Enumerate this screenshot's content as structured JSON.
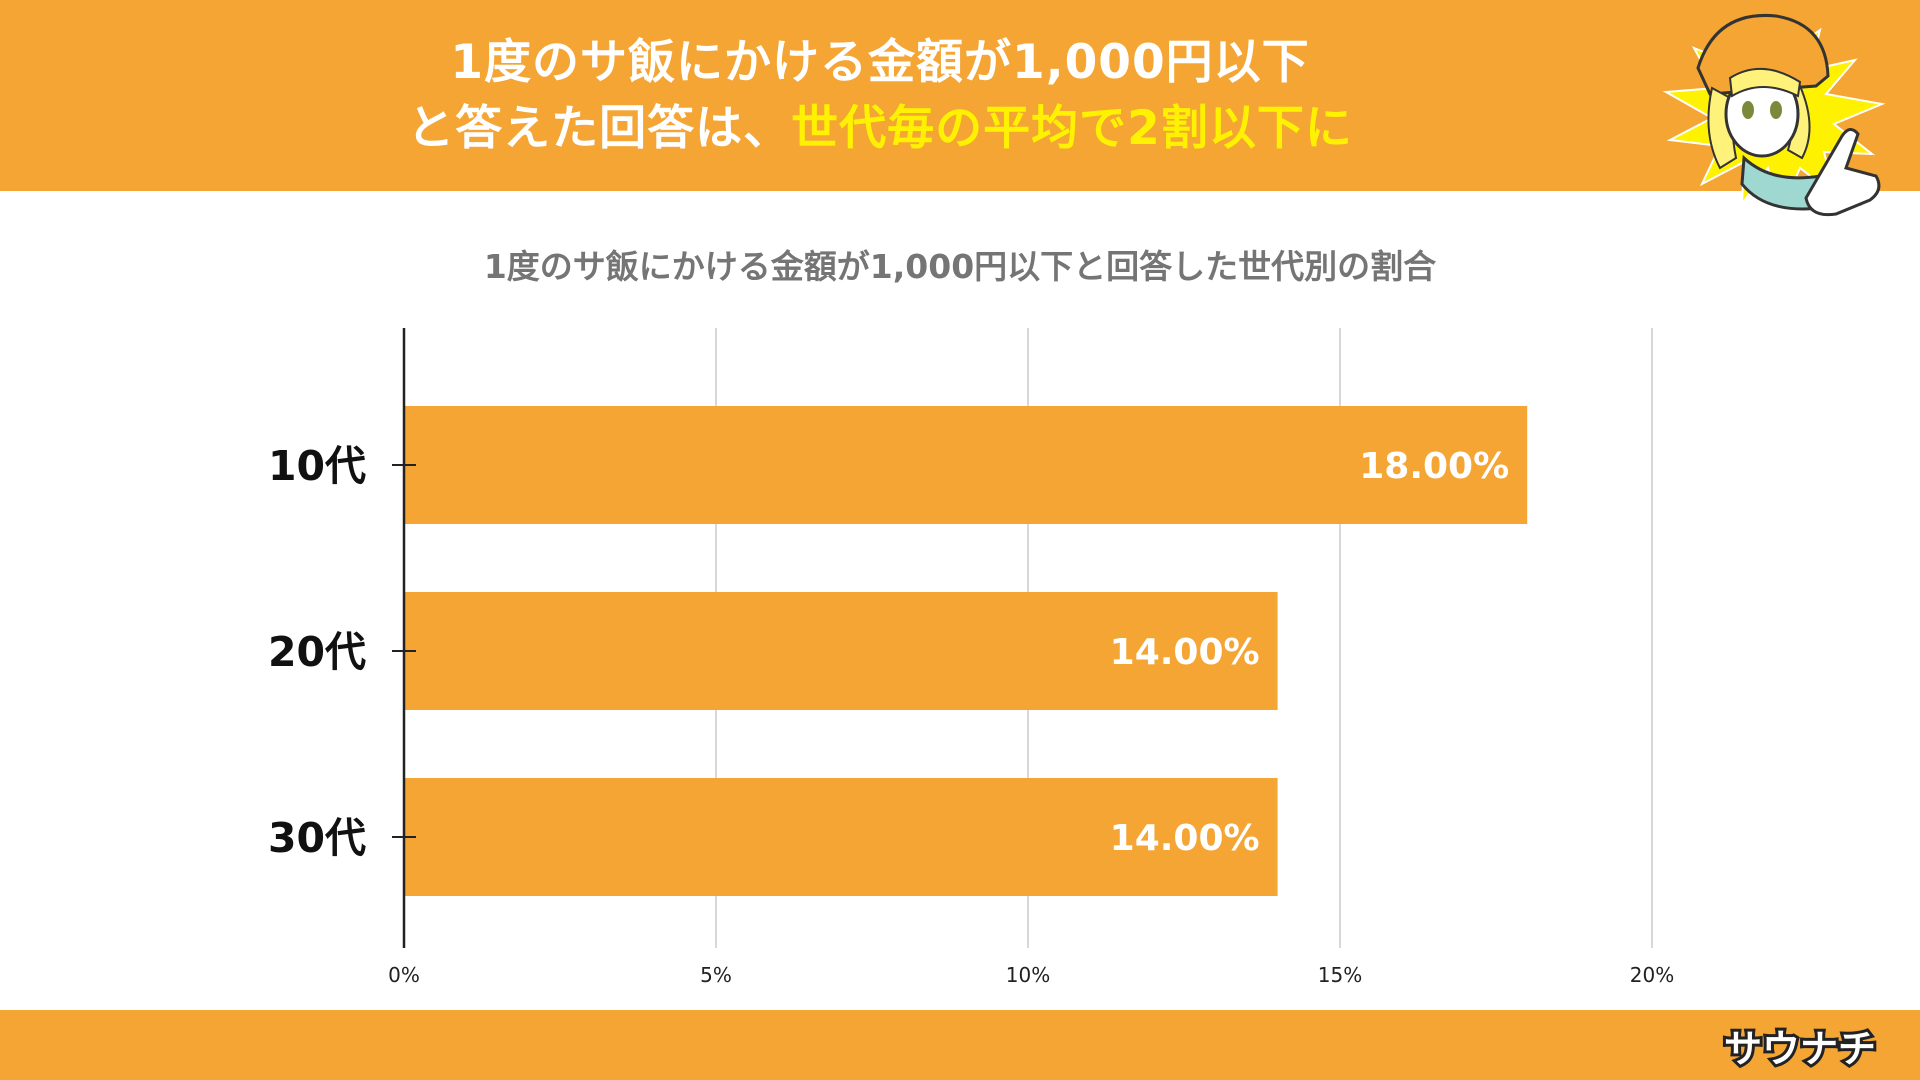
{
  "headline": {
    "line1": "1度のサ飯にかける金額が1,000円以下",
    "line2_prefix": "と答えた回答は、",
    "line2_highlight": "世代毎の平均で2割以下に"
  },
  "logo_text": "サウナチ",
  "colors": {
    "accent": "#f4a534",
    "highlight": "#fff200",
    "title_gray": "#757575",
    "grid": "#cccccc"
  },
  "icons": {
    "mascot": "pointing-girl-mascot-icon",
    "logo": "brand-logo-icon"
  },
  "chart_data": {
    "type": "bar",
    "orientation": "horizontal",
    "title": "1度のサ飯にかける金額が1,000円以下と回答した世代別の割合",
    "categories": [
      "10代",
      "20代",
      "30代"
    ],
    "values": [
      18.0,
      14.0,
      14.0
    ],
    "data_labels": [
      "18.00%",
      "14.00%",
      "14.00%"
    ],
    "xlim": [
      0,
      20
    ],
    "xticks": [
      0,
      5,
      10,
      15,
      20
    ],
    "xtick_labels": [
      "0%",
      "5%",
      "10%",
      "15%",
      "20%"
    ],
    "grid": true,
    "legend": "none",
    "bar_color": "#f4a534"
  }
}
